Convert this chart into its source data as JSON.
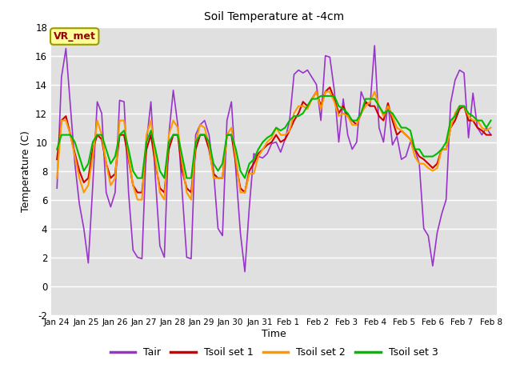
{
  "title": "Soil Temperature at -4cm",
  "xlabel": "Time",
  "ylabel": "Temperature (C)",
  "ylim": [
    -2,
    18
  ],
  "yticks": [
    -2,
    0,
    2,
    4,
    6,
    8,
    10,
    12,
    14,
    16,
    18
  ],
  "x_labels": [
    "Jan 24",
    "Jan 25",
    "Jan 26",
    "Jan 27",
    "Jan 28",
    "Jan 29",
    "Jan 30",
    "Jan 31",
    "Feb 1",
    "Feb 2",
    "Feb 3",
    "Feb 4",
    "Feb 5",
    "Feb 6",
    "Feb 7",
    "Feb 8"
  ],
  "bg_color": "#e0e0e0",
  "fig_color": "#ffffff",
  "grid_color": "#ffffff",
  "vr_label": "VR_met",
  "vr_color": "#990000",
  "vr_bg": "#ffff99",
  "vr_edge": "#999900",
  "series": {
    "Tair": {
      "color": "#9933cc",
      "linewidth": 1.2,
      "data": [
        6.8,
        14.5,
        16.5,
        12.5,
        8.5,
        5.7,
        4.0,
        1.6,
        7.0,
        12.8,
        12.0,
        6.5,
        5.5,
        6.5,
        12.9,
        12.8,
        6.5,
        2.5,
        2.0,
        1.9,
        10.0,
        12.8,
        7.5,
        2.8,
        2.0,
        10.5,
        13.6,
        11.2,
        6.5,
        2.0,
        1.9,
        10.5,
        11.2,
        11.5,
        10.5,
        8.0,
        4.0,
        3.5,
        11.5,
        12.8,
        8.0,
        3.7,
        1.0,
        5.5,
        9.2,
        9.0,
        8.9,
        9.2,
        9.9,
        10.0,
        9.3,
        10.2,
        11.5,
        14.7,
        15.0,
        14.8,
        15.0,
        14.5,
        14.0,
        11.5,
        16.0,
        15.9,
        13.6,
        10.0,
        13.0,
        10.5,
        9.5,
        10.0,
        13.5,
        12.7,
        12.5,
        16.7,
        11.0,
        10.0,
        12.7,
        9.8,
        10.4,
        8.8,
        9.0,
        10.0,
        9.5,
        8.5,
        4.0,
        3.5,
        1.4,
        3.7,
        5.0,
        6.0,
        12.7,
        14.3,
        15.0,
        14.8,
        10.3,
        13.4,
        11.0,
        10.5,
        11.0,
        10.5
      ]
    },
    "Tsoil set 1": {
      "color": "#cc0000",
      "linewidth": 1.5,
      "data": [
        8.8,
        11.5,
        11.8,
        10.5,
        9.2,
        8.0,
        7.2,
        7.5,
        9.5,
        10.5,
        10.2,
        8.5,
        7.5,
        7.8,
        10.5,
        10.5,
        8.8,
        7.0,
        6.5,
        6.5,
        9.5,
        10.5,
        8.5,
        6.8,
        6.5,
        9.5,
        10.5,
        10.5,
        8.0,
        6.8,
        6.5,
        9.5,
        10.5,
        10.5,
        9.5,
        7.8,
        7.5,
        7.5,
        10.5,
        10.5,
        8.5,
        6.8,
        6.5,
        8.0,
        8.5,
        9.2,
        9.5,
        9.8,
        10.0,
        10.5,
        10.0,
        10.2,
        10.8,
        11.5,
        12.0,
        12.8,
        12.5,
        13.0,
        13.5,
        12.5,
        13.5,
        13.8,
        13.0,
        12.0,
        12.5,
        11.8,
        11.5,
        11.2,
        12.0,
        12.8,
        12.5,
        12.5,
        11.8,
        11.5,
        12.7,
        11.5,
        10.5,
        10.8,
        10.5,
        10.2,
        9.5,
        9.0,
        8.8,
        8.5,
        8.2,
        8.5,
        9.5,
        9.5,
        11.0,
        11.5,
        12.3,
        12.5,
        11.5,
        11.5,
        11.0,
        10.8,
        10.5,
        10.5
      ]
    },
    "Tsoil set 2": {
      "color": "#ff9900",
      "linewidth": 1.5,
      "data": [
        7.5,
        11.5,
        11.5,
        10.5,
        9.0,
        7.5,
        6.5,
        7.0,
        9.0,
        11.5,
        10.5,
        8.5,
        7.0,
        7.5,
        11.5,
        11.5,
        9.0,
        7.0,
        6.0,
        6.0,
        10.5,
        11.5,
        8.8,
        6.5,
        6.0,
        10.5,
        11.5,
        11.0,
        8.5,
        6.5,
        6.0,
        10.0,
        11.2,
        11.0,
        9.8,
        7.5,
        7.5,
        7.5,
        10.5,
        11.0,
        8.8,
        6.5,
        6.5,
        7.8,
        7.8,
        9.0,
        9.5,
        10.0,
        10.3,
        11.0,
        10.5,
        10.5,
        10.8,
        12.0,
        12.5,
        12.5,
        12.3,
        13.0,
        13.5,
        12.3,
        13.5,
        13.5,
        12.8,
        11.8,
        12.0,
        11.8,
        11.2,
        11.2,
        12.0,
        12.5,
        12.8,
        13.5,
        12.5,
        11.8,
        12.5,
        11.8,
        11.0,
        10.8,
        10.5,
        10.2,
        9.0,
        8.5,
        8.5,
        8.2,
        8.0,
        8.2,
        9.5,
        9.5,
        11.0,
        12.0,
        12.5,
        12.5,
        11.8,
        11.5,
        11.5,
        11.0,
        10.8,
        11.0
      ]
    },
    "Tsoil set 3": {
      "color": "#00bb00",
      "linewidth": 1.5,
      "data": [
        9.5,
        10.5,
        10.5,
        10.5,
        10.0,
        9.0,
        8.0,
        8.5,
        10.0,
        10.5,
        10.5,
        9.5,
        8.5,
        9.0,
        10.5,
        10.8,
        9.5,
        8.0,
        7.5,
        7.5,
        10.0,
        10.8,
        9.5,
        8.0,
        7.5,
        10.0,
        10.5,
        10.5,
        9.0,
        7.5,
        7.5,
        10.0,
        10.5,
        10.5,
        10.0,
        8.5,
        8.0,
        8.5,
        10.5,
        10.5,
        9.5,
        8.0,
        7.5,
        8.5,
        8.8,
        9.5,
        10.0,
        10.3,
        10.5,
        11.0,
        10.8,
        11.0,
        11.5,
        11.8,
        11.8,
        12.0,
        12.5,
        13.0,
        13.0,
        13.2,
        13.2,
        13.2,
        13.2,
        12.5,
        12.3,
        12.0,
        11.5,
        11.5,
        12.0,
        13.0,
        13.0,
        13.0,
        12.5,
        12.0,
        12.2,
        12.0,
        11.5,
        11.0,
        11.0,
        10.8,
        9.5,
        9.5,
        9.0,
        9.0,
        9.0,
        9.2,
        9.5,
        10.0,
        11.5,
        11.8,
        12.5,
        12.5,
        12.0,
        11.8,
        11.5,
        11.5,
        11.0,
        11.5
      ]
    }
  }
}
